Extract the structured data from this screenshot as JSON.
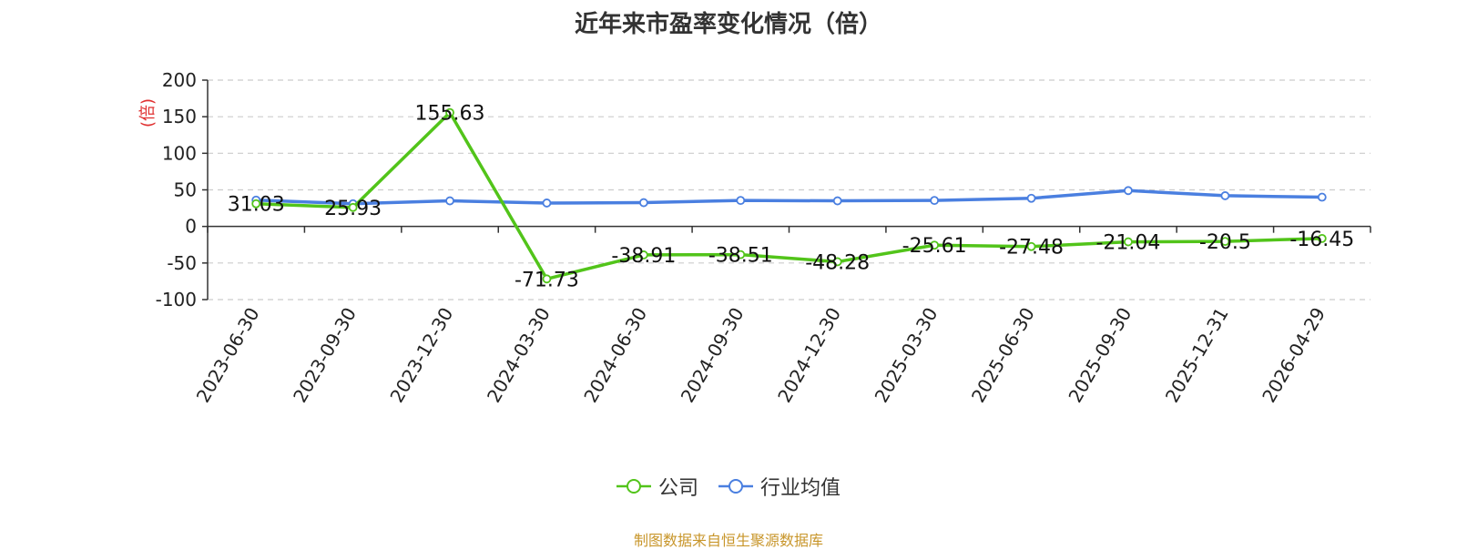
{
  "title": "近年来市盈率变化情况（倍）",
  "source": "制图数据来自恒生聚源数据库",
  "colors": {
    "company": "#52c41a",
    "industry": "#4a7fe0",
    "ylabel": "#e03030",
    "grid": "#cccccc",
    "axis": "#333333",
    "label": "#222222"
  },
  "chart_data": {
    "type": "line",
    "title": "近年来市盈率变化情况（倍）",
    "ylabel": "(倍)",
    "xlabel": "",
    "ylim": [
      -100,
      200
    ],
    "yticks": [
      200,
      150,
      100,
      50,
      0,
      -50,
      -100
    ],
    "grid": true,
    "legend_position": "bottom",
    "categories": [
      "2023-06-30",
      "2023-09-30",
      "2023-12-30",
      "2024-03-30",
      "2024-06-30",
      "2024-09-30",
      "2024-12-30",
      "2025-03-30",
      "2025-06-30",
      "2025-09-30",
      "2025-12-31",
      "2026-04-29"
    ],
    "series": [
      {
        "name": "公司",
        "color": "#52c41a",
        "values": [
          31.03,
          25.93,
          155.63,
          -71.73,
          -38.91,
          -38.51,
          -48.28,
          -25.61,
          -27.48,
          -21.04,
          -20.5,
          -16.45
        ],
        "labels": [
          "31.03",
          "25.93",
          "155.63",
          "-71.73",
          "-38.91",
          "-38.51",
          "-48.28",
          "-25.61",
          "-27.48",
          "-21.04",
          "-20.5",
          "-16.45"
        ]
      },
      {
        "name": "行业均值",
        "color": "#4a7fe0",
        "values": [
          36,
          31,
          35,
          32,
          32.5,
          35.5,
          35,
          35.5,
          38.5,
          49,
          42,
          40
        ]
      }
    ]
  }
}
